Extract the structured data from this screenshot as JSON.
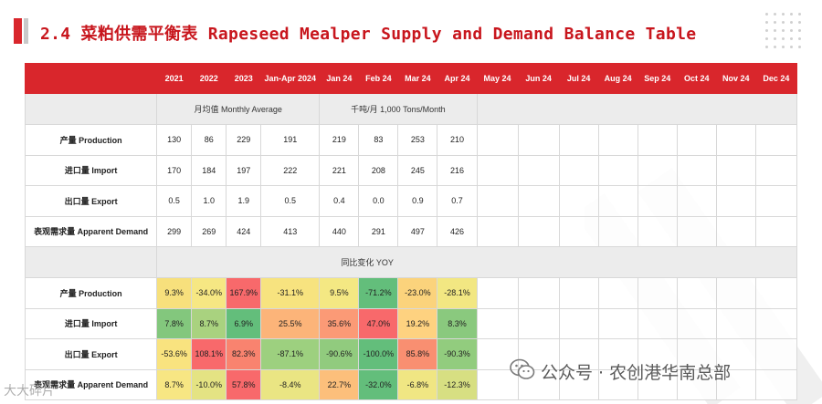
{
  "title": "2.4 菜粕供需平衡表 Rapeseed Mealper Supply and Demand Balance Table",
  "colors": {
    "accent": "#d9262c",
    "title": "#c8161d"
  },
  "columns": [
    "2021",
    "2022",
    "2023",
    "Jan-Apr 2024",
    "Jan 24",
    "Feb 24",
    "Mar 24",
    "Apr 24",
    "May 24",
    "Jun 24",
    "Jul 24",
    "Aug 24",
    "Sep 24",
    "Oct 24",
    "Nov 24",
    "Dec 24"
  ],
  "monthly_label": "月均值 Monthly Average",
  "unit_label": "千吨/月 1,000 Tons/Month",
  "yoy_label": "同比变化 YOY",
  "volume_rows": [
    {
      "label": "产量 Production",
      "values": [
        "130",
        "86",
        "229",
        "191",
        "219",
        "83",
        "253",
        "210"
      ]
    },
    {
      "label": "进口量 Import",
      "values": [
        "170",
        "184",
        "197",
        "222",
        "221",
        "208",
        "245",
        "216"
      ]
    },
    {
      "label": "出口量 Export",
      "values": [
        "0.5",
        "1.0",
        "1.9",
        "0.5",
        "0.4",
        "0.0",
        "0.9",
        "0.7"
      ]
    },
    {
      "label": "表观需求量 Apparent Demand",
      "values": [
        "299",
        "269",
        "424",
        "413",
        "440",
        "291",
        "497",
        "426"
      ]
    }
  ],
  "yoy_rows": [
    {
      "label": "产量 Production",
      "values": [
        "9.3%",
        "-34.0%",
        "167.9%",
        "-31.1%",
        "9.5%",
        "-71.2%",
        "-23.0%",
        "-28.1%"
      ],
      "colors": [
        "#f7e07c",
        "#f6e783",
        "#f8696b",
        "#f7e37f",
        "#f4e883",
        "#63be7b",
        "#fbd37c",
        "#f2e782"
      ]
    },
    {
      "label": "进口量 Import",
      "values": [
        "7.8%",
        "8.7%",
        "6.9%",
        "25.5%",
        "35.6%",
        "47.0%",
        "19.2%",
        "8.3%"
      ],
      "colors": [
        "#83c77d",
        "#a9d27f",
        "#63be7b",
        "#fcb479",
        "#fb9a76",
        "#f8696b",
        "#fed280",
        "#8ac97e"
      ]
    },
    {
      "label": "出口量 Export",
      "values": [
        "-53.6%",
        "108.1%",
        "82.3%",
        "-87.1%",
        "-90.6%",
        "-100.0%",
        "85.8%",
        "-90.3%"
      ],
      "colors": [
        "#f9e37f",
        "#f8696b",
        "#f9836f",
        "#9dd07f",
        "#91cb7e",
        "#63be7b",
        "#f98f71",
        "#92cc7e"
      ]
    },
    {
      "label": "表观需求量 Apparent Demand",
      "values": [
        "8.7%",
        "-10.0%",
        "57.8%",
        "-8.4%",
        "22.7%",
        "-32.0%",
        "-6.8%",
        "-12.3%"
      ],
      "colors": [
        "#f7e683",
        "#e4e383",
        "#f8696b",
        "#eae583",
        "#fcbf7b",
        "#63be7b",
        "#f0e683",
        "#d7df82"
      ]
    }
  ],
  "watermark": "公众号 · 农创港华南总部",
  "watermark_bottom": "大大碎片"
}
